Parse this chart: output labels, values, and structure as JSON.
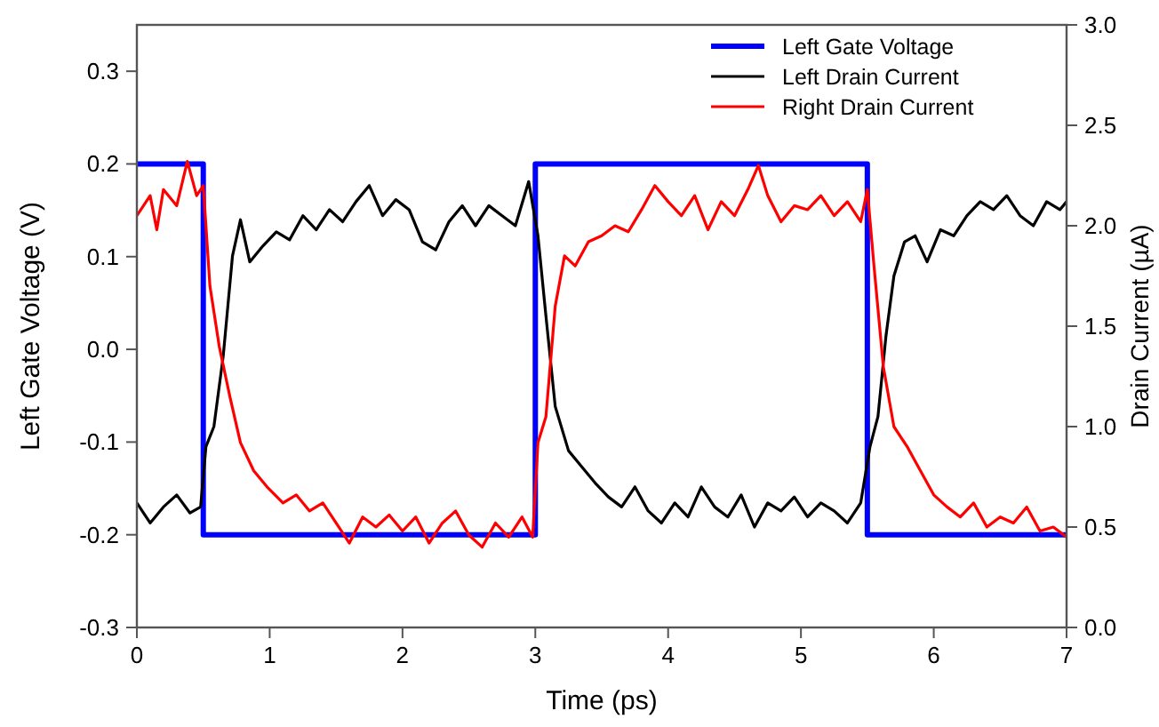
{
  "chart_data": {
    "type": "line",
    "xlabel": "Time (ps)",
    "ylabel": "Left Gate Voltage (V)",
    "y2label": "Drain Current (µA)",
    "xlim": [
      0,
      7
    ],
    "xticks": [
      0,
      1,
      2,
      3,
      4,
      5,
      6,
      7
    ],
    "ylim": [
      -0.3,
      0.35
    ],
    "yticks": [
      -0.3,
      -0.2,
      -0.1,
      {
        "value": 0,
        "label": "0.0"
      },
      0.1,
      0.2,
      0.3
    ],
    "y2lim": [
      0,
      3
    ],
    "y2ticks": [
      {
        "value": 0,
        "label": "0.0"
      },
      0.5,
      {
        "value": 1,
        "label": "1.0"
      },
      1.5,
      {
        "value": 2,
        "label": "2.0"
      },
      2.5,
      {
        "value": 3,
        "label": "3.0"
      }
    ],
    "legend": "top right",
    "grid": false,
    "series": [
      {
        "name": "Left Gate Voltage",
        "type": "step",
        "color": "#0000ff",
        "x": [
          0,
          0.5,
          3,
          5.5,
          7
        ],
        "values": [
          0.2,
          -0.2,
          0.2,
          -0.2,
          -0.2
        ]
      },
      {
        "name": "Left Drain Current",
        "color": "#000000",
        "axis": "y2",
        "x": [
          0,
          0.1,
          0.2,
          0.3,
          0.4,
          0.48,
          0.52,
          0.58,
          0.65,
          0.72,
          0.78,
          0.85,
          0.95,
          1.05,
          1.15,
          1.25,
          1.35,
          1.45,
          1.55,
          1.65,
          1.75,
          1.85,
          1.95,
          2.05,
          2.15,
          2.25,
          2.35,
          2.45,
          2.55,
          2.65,
          2.75,
          2.85,
          2.95,
          3.02,
          3.08,
          3.15,
          3.25,
          3.35,
          3.45,
          3.55,
          3.65,
          3.75,
          3.85,
          3.95,
          4.05,
          4.15,
          4.25,
          4.35,
          4.45,
          4.55,
          4.65,
          4.75,
          4.85,
          4.95,
          5.05,
          5.15,
          5.25,
          5.35,
          5.45,
          5.52,
          5.58,
          5.64,
          5.7,
          5.78,
          5.86,
          5.95,
          6.05,
          6.15,
          6.25,
          6.35,
          6.45,
          6.55,
          6.65,
          6.75,
          6.85,
          6.95,
          7.0
        ],
        "values": [
          0.62,
          0.52,
          0.6,
          0.66,
          0.57,
          0.6,
          0.9,
          1.0,
          1.35,
          1.85,
          2.03,
          1.82,
          1.9,
          1.97,
          1.93,
          2.05,
          1.98,
          2.08,
          2.02,
          2.12,
          2.2,
          2.05,
          2.13,
          2.08,
          1.92,
          1.88,
          2.02,
          2.1,
          2.0,
          2.1,
          2.05,
          2.0,
          2.22,
          1.95,
          1.55,
          1.1,
          0.88,
          0.8,
          0.72,
          0.65,
          0.6,
          0.7,
          0.58,
          0.52,
          0.62,
          0.55,
          0.7,
          0.6,
          0.55,
          0.66,
          0.5,
          0.62,
          0.58,
          0.65,
          0.55,
          0.62,
          0.58,
          0.52,
          0.62,
          0.9,
          1.05,
          1.45,
          1.75,
          1.92,
          1.95,
          1.82,
          1.98,
          1.95,
          2.05,
          2.12,
          2.08,
          2.15,
          2.05,
          2.0,
          2.12,
          2.08,
          2.12
        ]
      },
      {
        "name": "Right Drain Current",
        "color": "#ff0000",
        "axis": "y2",
        "x": [
          0,
          0.1,
          0.15,
          0.2,
          0.3,
          0.38,
          0.45,
          0.5,
          0.55,
          0.62,
          0.7,
          0.78,
          0.88,
          0.98,
          1.1,
          1.2,
          1.3,
          1.4,
          1.5,
          1.6,
          1.7,
          1.8,
          1.9,
          2.0,
          2.1,
          2.2,
          2.3,
          2.4,
          2.5,
          2.6,
          2.7,
          2.8,
          2.9,
          2.98,
          3.02,
          3.08,
          3.15,
          3.22,
          3.3,
          3.4,
          3.5,
          3.6,
          3.7,
          3.8,
          3.9,
          4.0,
          4.1,
          4.2,
          4.3,
          4.4,
          4.5,
          4.6,
          4.68,
          4.75,
          4.85,
          4.95,
          5.05,
          5.15,
          5.25,
          5.35,
          5.45,
          5.5,
          5.55,
          5.62,
          5.7,
          5.8,
          5.9,
          6.0,
          6.1,
          6.2,
          6.3,
          6.4,
          6.5,
          6.6,
          6.7,
          6.8,
          6.9,
          7.0
        ],
        "values": [
          2.05,
          2.15,
          1.98,
          2.18,
          2.1,
          2.32,
          2.15,
          2.2,
          1.7,
          1.4,
          1.15,
          0.92,
          0.78,
          0.7,
          0.62,
          0.66,
          0.58,
          0.62,
          0.52,
          0.42,
          0.55,
          0.5,
          0.56,
          0.48,
          0.55,
          0.42,
          0.52,
          0.58,
          0.46,
          0.4,
          0.52,
          0.45,
          0.55,
          0.45,
          0.92,
          1.05,
          1.6,
          1.85,
          1.8,
          1.92,
          1.95,
          2.0,
          1.97,
          2.08,
          2.2,
          2.12,
          2.05,
          2.15,
          1.98,
          2.12,
          2.05,
          2.18,
          2.3,
          2.15,
          2.02,
          2.1,
          2.08,
          2.15,
          2.05,
          2.12,
          2.02,
          2.18,
          1.8,
          1.3,
          1.0,
          0.9,
          0.78,
          0.66,
          0.6,
          0.55,
          0.62,
          0.5,
          0.55,
          0.52,
          0.6,
          0.48,
          0.5,
          0.45
        ]
      }
    ]
  }
}
